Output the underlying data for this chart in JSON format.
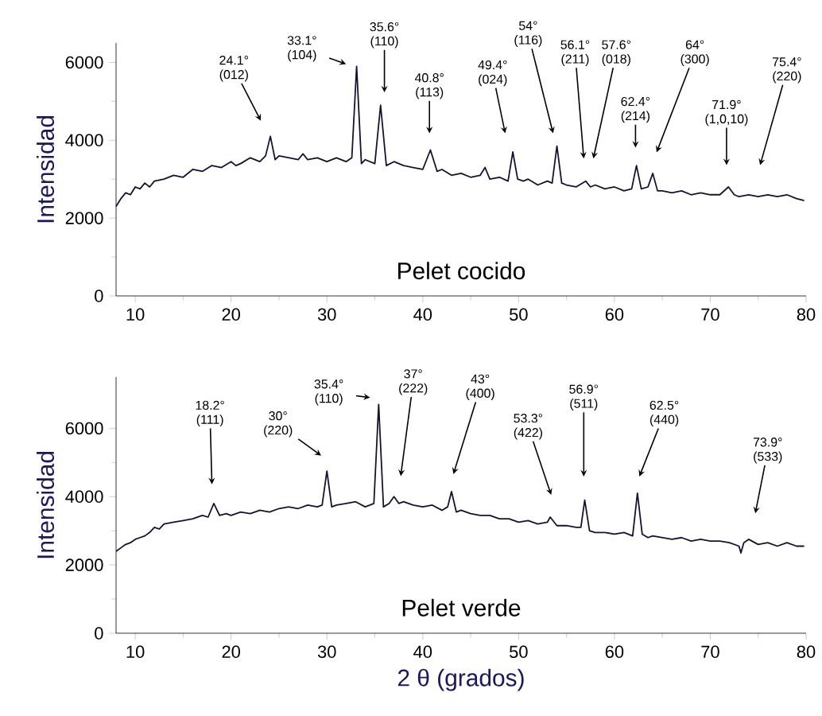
{
  "chart_data": [
    {
      "type": "line",
      "title": "Pelet cocido",
      "ylabel": "Intensidad",
      "xlim": [
        8,
        80
      ],
      "ylim": [
        0,
        6500
      ],
      "xticks": [
        10,
        20,
        30,
        40,
        50,
        60,
        70,
        80
      ],
      "yticks": [
        0,
        2000,
        4000,
        6000
      ],
      "x": [
        8,
        8.5,
        9,
        9.5,
        10,
        10.5,
        11,
        11.5,
        12,
        13,
        14,
        15,
        16,
        17,
        18,
        19,
        20,
        20.5,
        21,
        22,
        23,
        23.6,
        24.1,
        24.6,
        25,
        26,
        27,
        27.5,
        28,
        29,
        30,
        31,
        32,
        32.6,
        33.1,
        33.6,
        34,
        35,
        35.6,
        36.2,
        37,
        38,
        39,
        40,
        40.8,
        41.5,
        42,
        43,
        44,
        45,
        46,
        46.5,
        47,
        48,
        48.9,
        49.4,
        49.9,
        50.5,
        51,
        52,
        53,
        53.5,
        54,
        54.5,
        55,
        56,
        57,
        57.5,
        58,
        59,
        60,
        61,
        61.8,
        62.3,
        62.8,
        63.5,
        64,
        64.5,
        65,
        66,
        67,
        68,
        69,
        70,
        71,
        71.9,
        72.5,
        73,
        74,
        75,
        76,
        77,
        78,
        79,
        79.8
      ],
      "series": [
        {
          "color": "#141432",
          "values": [
            2300,
            2500,
            2650,
            2600,
            2800,
            2750,
            2900,
            2800,
            2950,
            3000,
            3100,
            3050,
            3250,
            3200,
            3350,
            3300,
            3450,
            3350,
            3400,
            3550,
            3450,
            3600,
            4100,
            3500,
            3600,
            3550,
            3500,
            3650,
            3500,
            3550,
            3450,
            3550,
            3450,
            3550,
            5900,
            3400,
            3500,
            3400,
            4900,
            3350,
            3450,
            3350,
            3300,
            3250,
            3750,
            3200,
            3250,
            3100,
            3150,
            3050,
            3100,
            3300,
            3000,
            3050,
            2950,
            3700,
            3000,
            2950,
            3000,
            2850,
            2950,
            2900,
            3850,
            2900,
            2850,
            2800,
            2950,
            2800,
            2850,
            2750,
            2800,
            2700,
            2750,
            3350,
            2750,
            2800,
            3150,
            2700,
            2700,
            2650,
            2700,
            2600,
            2650,
            2600,
            2600,
            2800,
            2600,
            2550,
            2600,
            2550,
            2600,
            2550,
            2600,
            2500,
            2450
          ]
        }
      ],
      "annotations": [
        "24.1° (012)",
        "33.1° (104)",
        "35.6° (110)",
        "40.8° (113)",
        "49.4° (024)",
        "54° (116)",
        "56.1° (211)",
        "57.6° (018)",
        "62.4° (214)",
        "64° (300)",
        "71.9° (1,0,10)",
        "75.4° (220)"
      ]
    },
    {
      "type": "line",
      "title": "Pelet verde",
      "ylabel": "Intensidad",
      "xlabel": "2 θ (grados)",
      "xlim": [
        8,
        80
      ],
      "ylim": [
        0,
        7500
      ],
      "xticks": [
        10,
        20,
        30,
        40,
        50,
        60,
        70,
        80
      ],
      "yticks": [
        0,
        2000,
        4000,
        6000
      ],
      "x": [
        8,
        8.5,
        9,
        9.5,
        10,
        10.5,
        11,
        11.5,
        12,
        12.5,
        13,
        14,
        15,
        16,
        17,
        17.6,
        18.2,
        18.8,
        19.5,
        20,
        21,
        22,
        23,
        24,
        25,
        26,
        27,
        28,
        29,
        29.5,
        30,
        30.5,
        31,
        32,
        33,
        34,
        34.9,
        35.4,
        35.9,
        36.5,
        37,
        37.5,
        38,
        39,
        40,
        41,
        42,
        42.6,
        43,
        43.5,
        44,
        45,
        46,
        47,
        48,
        49,
        50,
        51,
        52,
        53,
        53.3,
        54,
        55,
        56,
        56.5,
        56.9,
        57.4,
        58,
        59,
        60,
        61,
        61.9,
        62.4,
        62.9,
        63.5,
        64,
        65,
        66,
        67,
        68,
        69,
        70,
        71,
        72,
        73,
        73.2,
        73.5,
        74,
        75,
        76,
        77,
        78,
        79,
        79.8
      ],
      "series": [
        {
          "color": "#141432",
          "values": [
            2400,
            2500,
            2600,
            2650,
            2750,
            2800,
            2850,
            2950,
            3100,
            3050,
            3200,
            3250,
            3300,
            3350,
            3450,
            3400,
            3800,
            3450,
            3500,
            3450,
            3550,
            3500,
            3600,
            3550,
            3650,
            3700,
            3650,
            3750,
            3700,
            3750,
            4750,
            3700,
            3750,
            3800,
            3850,
            3700,
            3800,
            6700,
            3700,
            3800,
            4000,
            3800,
            3850,
            3750,
            3700,
            3750,
            3600,
            3700,
            4150,
            3550,
            3600,
            3500,
            3450,
            3450,
            3350,
            3350,
            3250,
            3300,
            3200,
            3250,
            3400,
            3150,
            3150,
            3100,
            3100,
            3900,
            3000,
            2950,
            2950,
            2900,
            2950,
            2850,
            4100,
            2900,
            2800,
            2850,
            2800,
            2750,
            2800,
            2700,
            2750,
            2700,
            2700,
            2650,
            2550,
            2350,
            2650,
            2750,
            2600,
            2650,
            2550,
            2650,
            2550,
            2550
          ]
        }
      ],
      "annotations": [
        "18.2° (111)",
        "30° (220)",
        "35.4° (110)",
        "37° (222)",
        "43° (400)",
        "53.3° (422)",
        "56.9° (511)",
        "62.5° (440)",
        "73.9° (533)"
      ]
    }
  ]
}
